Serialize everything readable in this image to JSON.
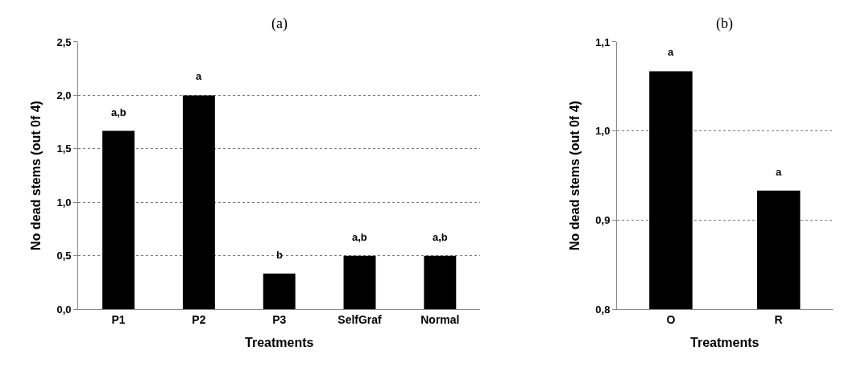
{
  "chart_data": [
    {
      "type": "bar",
      "title": "(a)",
      "xlabel": "Treatments",
      "ylabel": "No dead stems (out 0f 4)",
      "categories": [
        "P1",
        "P2",
        "P3",
        "SelfGraf",
        "Normal"
      ],
      "values": [
        1.667,
        2.0,
        0.333,
        0.5,
        0.5
      ],
      "color": "#000000",
      "ylim": [
        0,
        2.5
      ],
      "yticks": [
        {
          "value": 0,
          "label": "0,0"
        },
        {
          "value": 0.5,
          "label": "0,5"
        },
        {
          "value": 1.0,
          "label": "1,0"
        },
        {
          "value": 1.5,
          "label": "1,5"
        },
        {
          "value": 2.0,
          "label": "2,0"
        },
        {
          "value": 2.5,
          "label": "2,5"
        }
      ],
      "grid": "y",
      "annotations": [
        "a,b",
        "a",
        "b",
        "a,b",
        "a,b"
      ]
    },
    {
      "type": "bar",
      "title": "(b)",
      "xlabel": "Treatments",
      "ylabel": "No dead stems (out 0f 4)",
      "categories": [
        "O",
        "R"
      ],
      "values": [
        1.067,
        0.933
      ],
      "color": "#000000",
      "ylim": [
        0.8,
        1.1
      ],
      "yticks": [
        {
          "value": 0.8,
          "label": "0,8"
        },
        {
          "value": 0.9,
          "label": "0,9"
        },
        {
          "value": 1.0,
          "label": "1,0"
        },
        {
          "value": 1.1,
          "label": "1,1"
        }
      ],
      "grid": "y",
      "annotations": [
        "a",
        "a"
      ]
    }
  ]
}
